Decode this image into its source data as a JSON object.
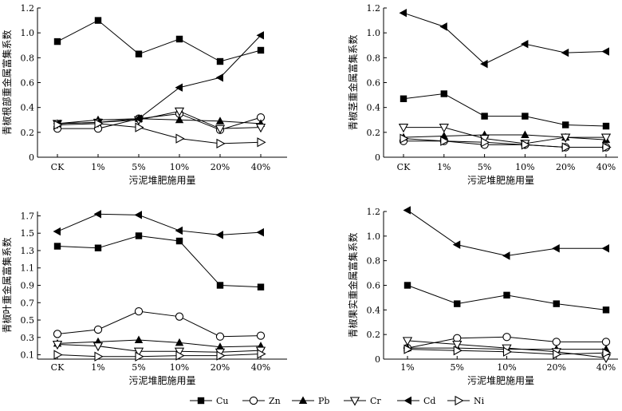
{
  "figure": {
    "legend": [
      {
        "name": "Cu",
        "marker": "square-filled"
      },
      {
        "name": "Zn",
        "marker": "circle-open"
      },
      {
        "name": "Pb",
        "marker": "triangle-up-filled"
      },
      {
        "name": "Cr",
        "marker": "triangle-down-open"
      },
      {
        "name": "Cd",
        "marker": "triangle-left-filled"
      },
      {
        "name": "Ni",
        "marker": "triangle-right-open"
      }
    ]
  },
  "chart_data": [
    {
      "type": "line",
      "panel": "top-left",
      "title": "",
      "xlabel": "污泥堆肥施用量",
      "ylabel": "青椒根部重金属富集系数",
      "categories": [
        "CK",
        "1%",
        "5%",
        "10%",
        "20%",
        "40%"
      ],
      "ylim": [
        0,
        1.2
      ],
      "yticks": [
        0,
        0.2,
        0.4,
        0.6,
        0.8,
        1.0,
        1.2
      ],
      "ytick_labels": [
        "0",
        "0.2",
        "0.4",
        "0.6",
        "0.8",
        "1.0",
        "1.2"
      ],
      "series": [
        {
          "name": "Cu",
          "values": [
            0.93,
            1.1,
            0.83,
            0.95,
            0.77,
            0.86
          ]
        },
        {
          "name": "Zn",
          "values": [
            0.23,
            0.23,
            0.31,
            0.35,
            0.22,
            0.32
          ]
        },
        {
          "name": "Pb",
          "values": [
            0.27,
            0.3,
            0.31,
            0.3,
            0.29,
            0.27
          ]
        },
        {
          "name": "Cr",
          "values": [
            0.27,
            0.28,
            0.3,
            0.37,
            0.23,
            0.24
          ]
        },
        {
          "name": "Cd",
          "values": [
            0.27,
            0.28,
            0.31,
            0.56,
            0.64,
            0.98
          ]
        },
        {
          "name": "Ni",
          "values": [
            0.26,
            0.27,
            0.24,
            0.15,
            0.11,
            0.12
          ]
        }
      ]
    },
    {
      "type": "line",
      "panel": "top-right",
      "title": "",
      "xlabel": "污泥堆肥施用量",
      "ylabel": "青椒茎重金属富集系数",
      "categories": [
        "CK",
        "1%",
        "5%",
        "10%",
        "20%",
        "40%"
      ],
      "ylim": [
        0,
        1.2
      ],
      "yticks": [
        0,
        0.2,
        0.4,
        0.6,
        0.8,
        1.0,
        1.2
      ],
      "ytick_labels": [
        "0",
        "0.2",
        "0.4",
        "0.6",
        "0.8",
        "1.0",
        "1.2"
      ],
      "series": [
        {
          "name": "Cu",
          "values": [
            0.47,
            0.51,
            0.33,
            0.33,
            0.26,
            0.25
          ]
        },
        {
          "name": "Zn",
          "values": [
            0.13,
            0.13,
            0.1,
            0.1,
            0.08,
            0.08
          ]
        },
        {
          "name": "Pb",
          "values": [
            0.16,
            0.17,
            0.18,
            0.18,
            0.16,
            0.14
          ]
        },
        {
          "name": "Cr",
          "values": [
            0.24,
            0.24,
            0.15,
            0.11,
            0.16,
            0.16
          ]
        },
        {
          "name": "Cd",
          "values": [
            1.16,
            1.05,
            0.75,
            0.91,
            0.84,
            0.85
          ]
        },
        {
          "name": "Ni",
          "values": [
            0.15,
            0.13,
            0.12,
            0.1,
            0.08,
            0.08
          ]
        }
      ]
    },
    {
      "type": "line",
      "panel": "bottom-left",
      "title": "",
      "xlabel": "污泥堆肥施用量",
      "ylabel": "青椒叶重金属富集系数",
      "categories": [
        "CK",
        "1%",
        "5%",
        "10%",
        "20%",
        "40%"
      ],
      "ylim": [
        0.05,
        1.75
      ],
      "yticks": [
        0.1,
        0.3,
        0.5,
        0.7,
        0.9,
        1.1,
        1.3,
        1.5,
        1.7
      ],
      "ytick_labels": [
        "0.1",
        "0.3",
        "0.5",
        "0.7",
        "0.9",
        "1.1",
        "1.3",
        "1.5",
        "1.7"
      ],
      "series": [
        {
          "name": "Cu",
          "values": [
            1.35,
            1.33,
            1.47,
            1.41,
            0.9,
            0.88
          ]
        },
        {
          "name": "Zn",
          "values": [
            0.34,
            0.39,
            0.6,
            0.54,
            0.31,
            0.32
          ]
        },
        {
          "name": "Pb",
          "values": [
            0.23,
            0.25,
            0.27,
            0.24,
            0.19,
            0.2
          ]
        },
        {
          "name": "Cr",
          "values": [
            0.22,
            0.2,
            0.14,
            0.14,
            0.13,
            0.15
          ]
        },
        {
          "name": "Cd",
          "values": [
            1.52,
            1.72,
            1.71,
            1.53,
            1.48,
            1.51
          ]
        },
        {
          "name": "Ni",
          "values": [
            0.1,
            0.08,
            0.08,
            0.09,
            0.09,
            0.11
          ]
        }
      ]
    },
    {
      "type": "line",
      "panel": "bottom-right",
      "title": "",
      "xlabel": "污泥堆肥施用量",
      "ylabel": "青椒果实重金属富集系数",
      "categories": [
        "1%",
        "5%",
        "10%",
        "20%",
        "40%"
      ],
      "ylim": [
        0,
        1.2
      ],
      "yticks": [
        0,
        0.2,
        0.4,
        0.6,
        0.8,
        1.0,
        1.2
      ],
      "ytick_labels": [
        "0",
        "0.2",
        "0.4",
        "0.6",
        "0.8",
        "1.0",
        "1.2"
      ],
      "series": [
        {
          "name": "Cu",
          "values": [
            0.6,
            0.45,
            0.52,
            0.45,
            0.4
          ]
        },
        {
          "name": "Zn",
          "values": [
            0.09,
            0.17,
            0.18,
            0.14,
            0.14
          ]
        },
        {
          "name": "Pb",
          "values": [
            0.09,
            0.09,
            0.08,
            0.08,
            0.08
          ]
        },
        {
          "name": "Cr",
          "values": [
            0.15,
            0.12,
            0.09,
            0.06,
            0.01
          ]
        },
        {
          "name": "Cd",
          "values": [
            1.21,
            0.93,
            0.84,
            0.9,
            0.9
          ]
        },
        {
          "name": "Ni",
          "values": [
            0.08,
            0.07,
            0.06,
            0.04,
            0.05
          ]
        }
      ]
    }
  ]
}
